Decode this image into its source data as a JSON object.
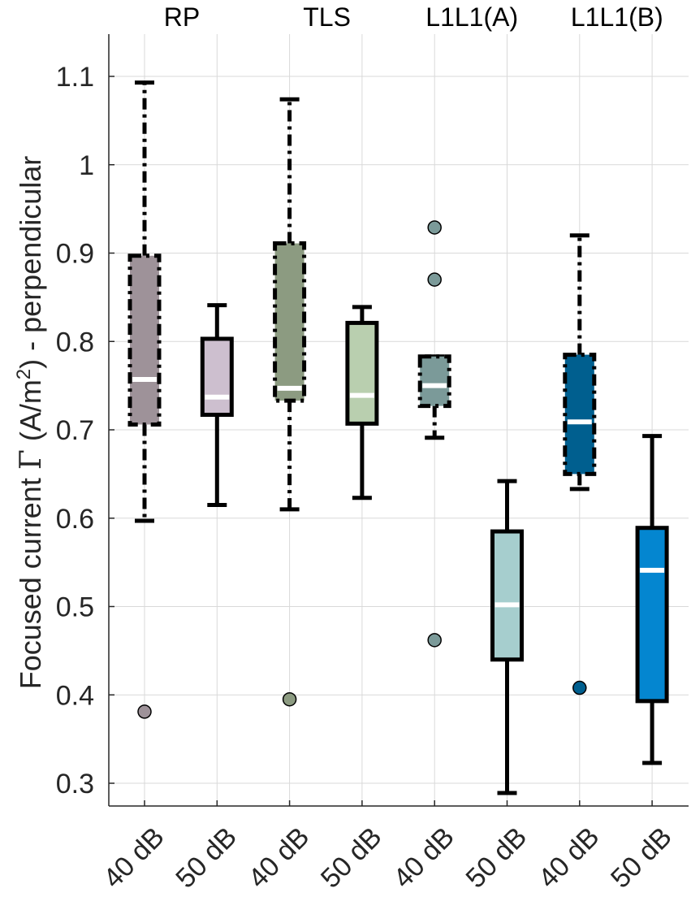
{
  "chart_data": {
    "type": "boxplot",
    "ylabel": {
      "prefix": "Focused current ",
      "symbol": "Γ",
      "unit_open": " (A/m",
      "unit_sup": "2",
      "unit_close": ") - perpendicular"
    },
    "ylim": [
      0.275,
      1.15
    ],
    "yticks": [
      0.3,
      0.4,
      0.5,
      0.6,
      0.7,
      0.8,
      0.9,
      1.0,
      1.1
    ],
    "ytick_labels": [
      "0.3",
      "0.4",
      "0.5",
      "0.6",
      "0.7",
      "0.8",
      "0.9",
      "1",
      "1.1"
    ],
    "grid": true,
    "groups": [
      {
        "label": "RP"
      },
      {
        "label": "TLS"
      },
      {
        "label": "L1L1(A)"
      },
      {
        "label": "L1L1(B)"
      }
    ],
    "categories": [
      "40 dB",
      "50 dB",
      "40 dB",
      "50 dB",
      "40 dB",
      "50 dB",
      "40 dB",
      "50 dB"
    ],
    "boxes": [
      {
        "name": "RP 40 dB",
        "group": "RP",
        "label": "40 dB",
        "min": 0.597,
        "q1": 0.706,
        "median": 0.757,
        "q3": 0.897,
        "max": 1.093,
        "outliers": [
          0.381
        ],
        "color": "#9e9299",
        "style": "dashdot"
      },
      {
        "name": "RP 50 dB",
        "group": "RP",
        "label": "50 dB",
        "min": 0.615,
        "q1": 0.717,
        "median": 0.737,
        "q3": 0.803,
        "max": 0.841,
        "outliers": [],
        "color": "#cdbfcf",
        "style": "solid"
      },
      {
        "name": "TLS 40 dB",
        "group": "TLS",
        "label": "40 dB",
        "min": 0.61,
        "q1": 0.733,
        "median": 0.747,
        "q3": 0.911,
        "max": 1.074,
        "outliers": [
          0.395
        ],
        "color": "#8c9b81",
        "style": "dashdot"
      },
      {
        "name": "TLS 50 dB",
        "group": "TLS",
        "label": "50 dB",
        "min": 0.623,
        "q1": 0.707,
        "median": 0.739,
        "q3": 0.821,
        "max": 0.839,
        "outliers": [],
        "color": "#b9cfaf",
        "style": "solid"
      },
      {
        "name": "L1L1(A) 40 dB",
        "group": "L1L1(A)",
        "label": "40 dB",
        "min": 0.691,
        "q1": 0.727,
        "median": 0.75,
        "q3": 0.783,
        "max": 0.783,
        "outliers": [
          0.929,
          0.87,
          0.462
        ],
        "color": "#7b9a99",
        "style": "dashdot"
      },
      {
        "name": "L1L1(A) 50 dB",
        "group": "L1L1(A)",
        "label": "50 dB",
        "min": 0.289,
        "q1": 0.44,
        "median": 0.502,
        "q3": 0.585,
        "max": 0.642,
        "outliers": [],
        "color": "#a6cece",
        "style": "solid"
      },
      {
        "name": "L1L1(B) 40 dB",
        "group": "L1L1(B)",
        "label": "40 dB",
        "min": 0.633,
        "q1": 0.65,
        "median": 0.709,
        "q3": 0.785,
        "max": 0.92,
        "outliers": [
          0.408
        ],
        "color": "#005f8f",
        "style": "dashdot"
      },
      {
        "name": "L1L1(B) 50 dB",
        "group": "L1L1(B)",
        "label": "50 dB",
        "min": 0.323,
        "q1": 0.393,
        "median": 0.541,
        "q3": 0.589,
        "max": 0.693,
        "outliers": [],
        "color": "#0486d0",
        "style": "solid"
      }
    ]
  }
}
